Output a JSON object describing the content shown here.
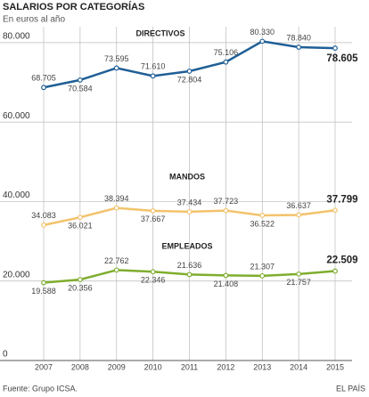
{
  "chart_data": {
    "type": "line",
    "title": "SALARIOS POR CATEGORÍAS",
    "subtitle": "En euros al año",
    "source": "Fuente: Grupo ICSA.",
    "credit": "EL PAÍS",
    "categories": [
      "2007",
      "2008",
      "2009",
      "2010",
      "2011",
      "2012",
      "2013",
      "2014",
      "2015"
    ],
    "series": [
      {
        "name": "DIRECTIVOS",
        "color": "#1f5f96",
        "values": [
          68705,
          70584,
          73595,
          71610,
          72804,
          75106,
          80330,
          78840,
          78605
        ],
        "value_labels": [
          "68.705",
          "70.584",
          "73.595",
          "71.610",
          "72.804",
          "75.106",
          "80.330",
          "78.840",
          "78.605"
        ]
      },
      {
        "name": "MANDOS",
        "color": "#f2c36b",
        "values": [
          34083,
          36021,
          38394,
          37667,
          37434,
          37723,
          36522,
          36637,
          37799
        ],
        "value_labels": [
          "34.083",
          "36.021",
          "38.394",
          "37.667",
          "37.434",
          "37.723",
          "36.522",
          "36.637",
          "37.799"
        ]
      },
      {
        "name": "EMPLEADOS",
        "color": "#7fad2e",
        "values": [
          19588,
          20356,
          22762,
          22346,
          21636,
          21408,
          21307,
          21757,
          22509
        ],
        "value_labels": [
          "19.588",
          "20.356",
          "22.762",
          "22.346",
          "21.636",
          "21.408",
          "21.307",
          "21.757",
          "22.509"
        ]
      }
    ],
    "ylim": [
      0,
      84000
    ],
    "yticks": [
      0,
      {
        "value": 20000,
        "label": "20.000"
      },
      {
        "value": 40000,
        "label": "40.000"
      },
      {
        "value": 60000,
        "label": "60.000"
      },
      {
        "value": 80000,
        "label": "80.000"
      }
    ],
    "grid": true
  }
}
